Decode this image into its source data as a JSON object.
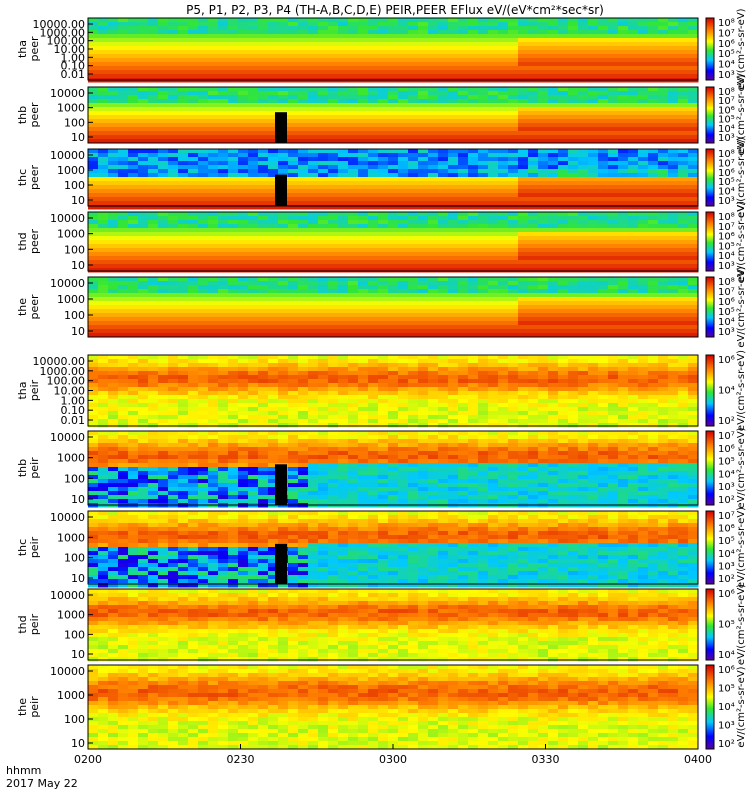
{
  "chart_data": {
    "type": "heatmap",
    "title": "P5, P1, P2, P3, P4 (TH-A,B,C,D,E) PEIR,PEER EFlux eV/(eV*cm²*sec*sr)",
    "x_ticks": [
      "0200",
      "0230",
      "0300",
      "0330",
      "0400"
    ],
    "x_label_line1": "hhmm",
    "x_label_line2": "2017 May 22",
    "panels": [
      {
        "id": "tha_peer",
        "ylabel": [
          "tha",
          "peer"
        ],
        "yticks": [
          "10000.00",
          "1000.00",
          "100.00",
          "10.00",
          "1.00",
          "0.10",
          "0.01"
        ],
        "cbar_ticks": [
          "10⁸",
          "10⁷",
          "10⁶",
          "10⁵",
          "10⁴",
          "10³"
        ],
        "cbar_unit": "eV/(cm²-s-sr-eV)",
        "species": "electron"
      },
      {
        "id": "thb_peer",
        "ylabel": [
          "thb",
          "peer"
        ],
        "yticks": [
          "10000",
          "1000",
          "100",
          "10"
        ],
        "cbar_ticks": [
          "10⁸",
          "10⁷",
          "10⁶",
          "10⁵",
          "10⁴",
          "10³"
        ],
        "cbar_unit": "eV/(cm²-s-sr-eV)",
        "species": "electron"
      },
      {
        "id": "thc_peer",
        "ylabel": [
          "thc",
          "peer"
        ],
        "yticks": [
          "10000",
          "1000",
          "100",
          "10"
        ],
        "cbar_ticks": [
          "10⁸",
          "10⁷",
          "10⁶",
          "10⁵",
          "10⁴",
          "10³"
        ],
        "cbar_unit": "eV/(cm²-s-sr-eV)",
        "species": "electron"
      },
      {
        "id": "thd_peer",
        "ylabel": [
          "thd",
          "peer"
        ],
        "yticks": [
          "10000",
          "1000",
          "100",
          "10"
        ],
        "cbar_ticks": [
          "10⁸",
          "10⁷",
          "10⁶",
          "10⁵",
          "10⁴",
          "10³"
        ],
        "cbar_unit": "eV/(cm²-s-sr-eV)",
        "species": "electron"
      },
      {
        "id": "the_peer",
        "ylabel": [
          "the",
          "peer"
        ],
        "yticks": [
          "10000",
          "1000",
          "100",
          "10"
        ],
        "cbar_ticks": [
          "10⁸",
          "10⁷",
          "10⁶",
          "10⁵",
          "10⁴",
          "10³"
        ],
        "cbar_unit": "eV/(cm²-s-sr-eV)",
        "species": "electron"
      },
      {
        "id": "tha_peir",
        "ylabel": [
          "tha",
          "peir"
        ],
        "yticks": [
          "10000.00",
          "1000.00",
          "100.00",
          "10.00",
          "1.00",
          "0.10",
          "0.01"
        ],
        "cbar_ticks": [
          "10⁶",
          "10⁴",
          "10²"
        ],
        "cbar_unit": "eV/(cm²-s-sr-eV)",
        "species": "ion"
      },
      {
        "id": "thb_peir",
        "ylabel": [
          "thb",
          "peir"
        ],
        "yticks": [
          "10000",
          "1000",
          "100",
          "10"
        ],
        "cbar_ticks": [
          "10⁷",
          "10⁶",
          "10⁵",
          "10⁴",
          "10³",
          "10²"
        ],
        "cbar_unit": "eV/(cm²-s-sr-eV)",
        "species": "ion"
      },
      {
        "id": "thc_peir",
        "ylabel": [
          "thc",
          "peir"
        ],
        "yticks": [
          "10000",
          "1000",
          "100",
          "10"
        ],
        "cbar_ticks": [
          "10⁷",
          "10⁶",
          "10⁵",
          "10⁴",
          "10³",
          "10²"
        ],
        "cbar_unit": "eV/(cm²-s-sr-eV)",
        "species": "ion"
      },
      {
        "id": "thd_peir",
        "ylabel": [
          "thd",
          "peir"
        ],
        "yticks": [
          "10000",
          "1000",
          "100",
          "10"
        ],
        "cbar_ticks": [
          "10⁶",
          "10⁵",
          "10⁴"
        ],
        "cbar_unit": "eV/(cm²-s-sr-eV)",
        "species": "ion"
      },
      {
        "id": "the_peir",
        "ylabel": [
          "the",
          "peir"
        ],
        "yticks": [
          "10000",
          "1000",
          "100",
          "10"
        ],
        "cbar_ticks": [
          "10⁶",
          "10⁵",
          "10⁴",
          "10³",
          "10²"
        ],
        "cbar_unit": "eV/(cm²-s-sr-eV)",
        "species": "ion"
      }
    ]
  }
}
